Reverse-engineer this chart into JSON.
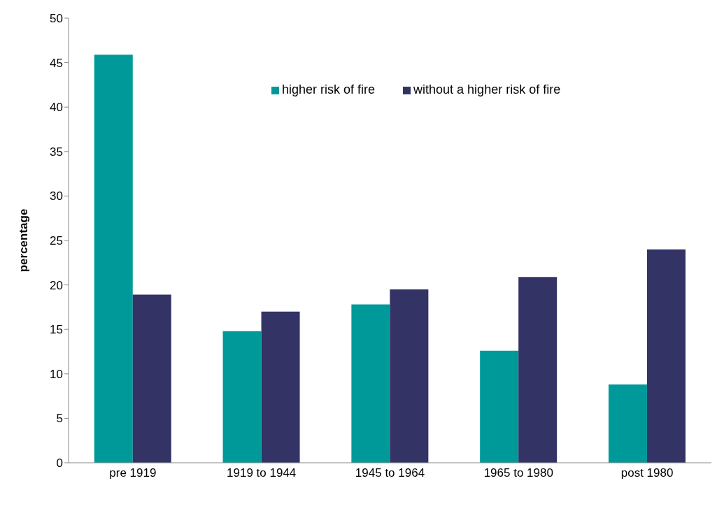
{
  "chart_data": {
    "type": "bar",
    "ylabel": "percentage",
    "categories": [
      "pre 1919",
      "1919 to 1944",
      "1945 to 1964",
      "1965 to 1980",
      "post 1980"
    ],
    "series": [
      {
        "name": "higher risk of fire",
        "color": "#009999",
        "values": [
          45.9,
          14.8,
          17.8,
          12.6,
          8.8
        ]
      },
      {
        "name": "without a higher risk of  fire",
        "color": "#333366",
        "values": [
          18.9,
          17.0,
          19.5,
          20.9,
          24.0
        ]
      }
    ],
    "ylim": [
      0,
      50
    ],
    "yticks": [
      0,
      5,
      10,
      15,
      20,
      25,
      30,
      35,
      40,
      45,
      50
    ],
    "grid": false,
    "legend": "top right"
  }
}
